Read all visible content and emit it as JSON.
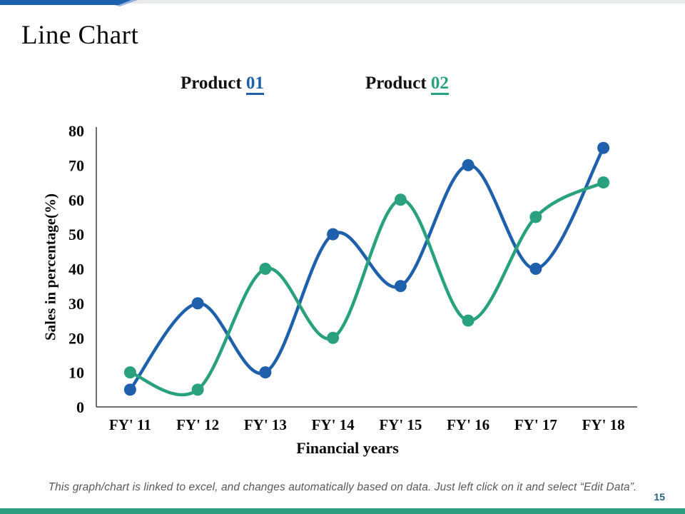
{
  "slide": {
    "title": "Line Chart"
  },
  "legend": {
    "items": [
      {
        "prefix": "Product",
        "number": "01",
        "color": "#1e60ab"
      },
      {
        "prefix": "Product",
        "number": "02",
        "color": "#2aa17e"
      }
    ]
  },
  "chart_data": {
    "type": "line",
    "smooth": true,
    "marker": "circle",
    "grid": false,
    "legend_position": "top",
    "categories": [
      "FY' 11",
      "FY' 12",
      "FY' 13",
      "FY' 14",
      "FY' 15",
      "FY' 16",
      "FY' 17",
      "FY' 18"
    ],
    "series": [
      {
        "name": "Product 01",
        "color": "#1e60ab",
        "values": [
          5,
          30,
          10,
          50,
          35,
          70,
          40,
          75
        ]
      },
      {
        "name": "Product 02",
        "color": "#2aa17e",
        "values": [
          10,
          5,
          40,
          20,
          60,
          25,
          55,
          65
        ]
      }
    ],
    "title": "Line Chart",
    "xlabel": "Financial years",
    "ylabel": "Sales in percentage(%)",
    "ylim": [
      0,
      80
    ],
    "yticks": [
      0,
      10,
      20,
      30,
      40,
      50,
      60,
      70,
      80
    ]
  },
  "footer": {
    "note": "This graph/chart is linked to excel, and changes automatically based on data. Just left click on it and select “Edit Data”.",
    "page_number": "15"
  },
  "accent_colors": {
    "top_bar_blue": "#1c61ae",
    "top_bar_gray": "#e8eaec",
    "bottom_bar_green": "#2f9e80",
    "axis_line": "#404040"
  }
}
